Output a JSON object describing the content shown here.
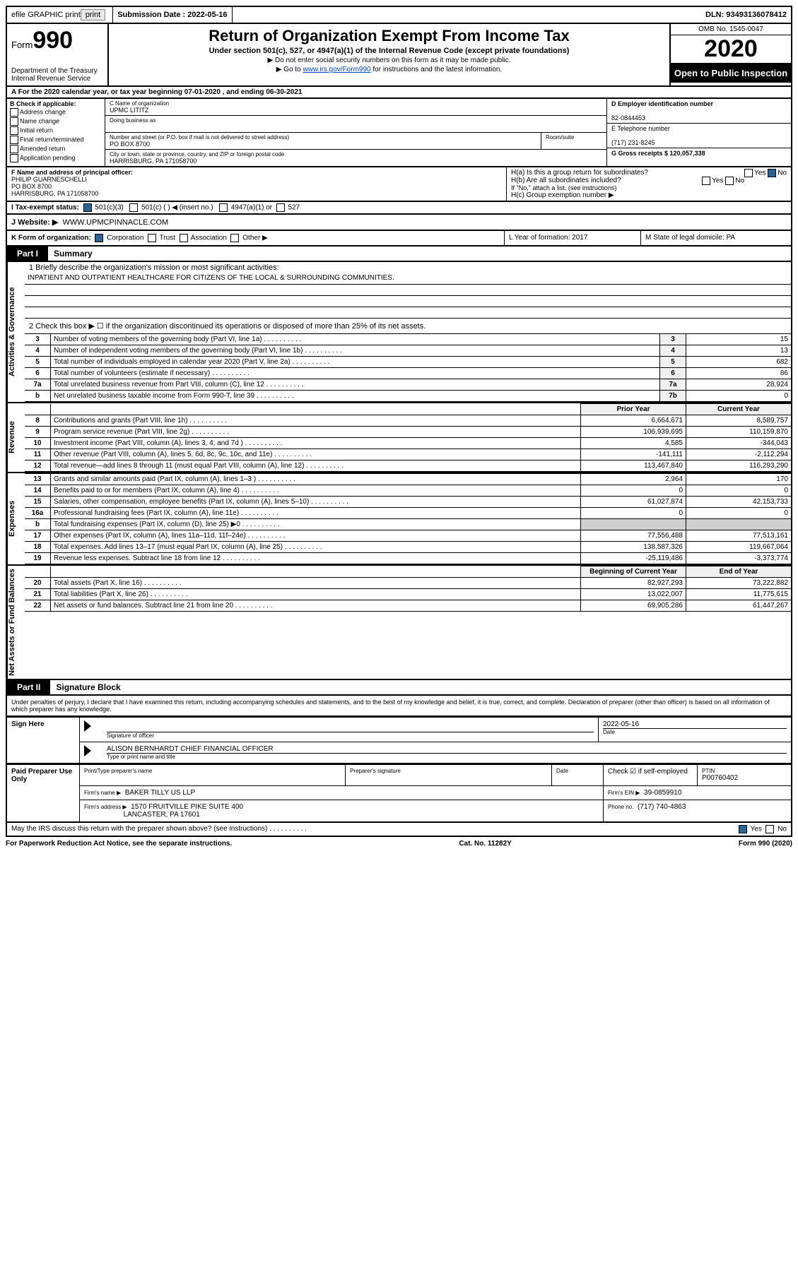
{
  "top_bar": {
    "efile_label": "efile GRAPHIC print",
    "submission_label": "Submission Date : 2022-05-16",
    "dln_label": "DLN: 93493136078412"
  },
  "header": {
    "form_label": "Form",
    "form_number": "990",
    "dept_line1": "Department of the Treasury",
    "dept_line2": "Internal Revenue Service",
    "title": "Return of Organization Exempt From Income Tax",
    "subtitle": "Under section 501(c), 527, or 4947(a)(1) of the Internal Revenue Code (except private foundations)",
    "note1": "▶ Do not enter social security numbers on this form as it may be made public.",
    "note2_pre": "▶ Go to ",
    "note2_link": "www.irs.gov/Form990",
    "note2_post": " for instructions and the latest information.",
    "omb": "OMB No. 1545-0047",
    "year": "2020",
    "open_public": "Open to Public Inspection"
  },
  "line_a": "A For the 2020 calendar year, or tax year beginning 07-01-2020    , and ending 06-30-2021",
  "section_b": {
    "label": "B Check if applicable:",
    "opts": [
      "Address change",
      "Name change",
      "Initial return",
      "Final return/terminated",
      "Amended return",
      "Application pending"
    ]
  },
  "section_c": {
    "name_label": "C Name of organization",
    "name_value": "UPMC LITITZ",
    "dba_label": "Doing business as",
    "addr_label": "Number and street (or P.O. box if mail is not delivered to street address)",
    "room_label": "Room/suite",
    "addr_value": "PO BOX 8700",
    "city_label": "City or town, state or province, country, and ZIP or foreign postal code",
    "city_value": "HARRISBURG, PA  171058700"
  },
  "section_d": {
    "ein_label": "D Employer identification number",
    "ein_value": "82-0844453",
    "tel_label": "E Telephone number",
    "tel_value": "(717) 231-8245",
    "gross_label": "G Gross receipts $ 120,057,338"
  },
  "section_f": {
    "label": "F Name and address of principal officer:",
    "line1": "PHILIP GUARNESCHELLI",
    "line2": "PO BOX 8700",
    "line3": "HARRISBURG, PA  171058700"
  },
  "section_h": {
    "ha": "H(a)  Is this a group return for subordinates?",
    "hb": "H(b)  Are all subordinates included?",
    "hb_note": "If \"No,\" attach a list. (see instructions)",
    "hc": "H(c)  Group exemption number ▶",
    "yes": "Yes",
    "no": "No"
  },
  "section_i": {
    "label": "I  Tax-exempt status:",
    "opt1": "501(c)(3)",
    "opt2": "501(c) (   ) ◀ (insert no.)",
    "opt3": "4947(a)(1) or",
    "opt4": "527"
  },
  "section_j": {
    "label": "J  Website: ▶",
    "value": "WWW.UPMCPINNACLE.COM"
  },
  "section_k": {
    "label": "K Form of organization:",
    "opts": [
      "Corporation",
      "Trust",
      "Association",
      "Other ▶"
    ],
    "l_label": "L Year of formation: 2017",
    "m_label": "M State of legal domicile: PA"
  },
  "part1": {
    "tab": "Part I",
    "title": "Summary",
    "mission_label": "1   Briefly describe the organization's mission or most significant activities:",
    "mission": "INPATIENT AND OUTPATIENT HEALTHCARE FOR CITIZENS OF THE LOCAL & SURROUNDING COMMUNITIES.",
    "line2": "2   Check this box ▶ ☐  if the organization discontinued its operations or disposed of more than 25% of its net assets.",
    "side_gov": "Activities & Governance",
    "side_rev": "Revenue",
    "side_exp": "Expenses",
    "side_net": "Net Assets or Fund Balances",
    "rows_gov": [
      {
        "n": "3",
        "l": "Number of voting members of the governing body (Part VI, line 1a)",
        "b": "3",
        "v": "15"
      },
      {
        "n": "4",
        "l": "Number of independent voting members of the governing body (Part VI, line 1b)",
        "b": "4",
        "v": "13"
      },
      {
        "n": "5",
        "l": "Total number of individuals employed in calendar year 2020 (Part V, line 2a)",
        "b": "5",
        "v": "682"
      },
      {
        "n": "6",
        "l": "Total number of volunteers (estimate if necessary)",
        "b": "6",
        "v": "86"
      },
      {
        "n": "7a",
        "l": "Total unrelated business revenue from Part VIII, column (C), line 12",
        "b": "7a",
        "v": "28,924"
      },
      {
        "n": "b",
        "l": "Net unrelated business taxable income from Form 990-T, line 39",
        "b": "7b",
        "v": "0"
      }
    ],
    "prior_hdr": "Prior Year",
    "current_hdr": "Current Year",
    "rows_rev": [
      {
        "n": "8",
        "l": "Contributions and grants (Part VIII, line 1h)",
        "p": "6,664,671",
        "c": "8,589,757"
      },
      {
        "n": "9",
        "l": "Program service revenue (Part VIII, line 2g)",
        "p": "106,939,695",
        "c": "110,159,870"
      },
      {
        "n": "10",
        "l": "Investment income (Part VIII, column (A), lines 3, 4, and 7d )",
        "p": "4,585",
        "c": "-344,043"
      },
      {
        "n": "11",
        "l": "Other revenue (Part VIII, column (A), lines 5, 6d, 8c, 9c, 10c, and 11e)",
        "p": "-141,111",
        "c": "-2,112,294"
      },
      {
        "n": "12",
        "l": "Total revenue—add lines 8 through 11 (must equal Part VIII, column (A), line 12)",
        "p": "113,467,840",
        "c": "116,293,290"
      }
    ],
    "rows_exp": [
      {
        "n": "13",
        "l": "Grants and similar amounts paid (Part IX, column (A), lines 1–3 )",
        "p": "2,964",
        "c": "170"
      },
      {
        "n": "14",
        "l": "Benefits paid to or for members (Part IX, column (A), line 4)",
        "p": "0",
        "c": "0"
      },
      {
        "n": "15",
        "l": "Salaries, other compensation, employee benefits (Part IX, column (A), lines 5–10)",
        "p": "61,027,874",
        "c": "42,153,733"
      },
      {
        "n": "16a",
        "l": "Professional fundraising fees (Part IX, column (A), line 11e)",
        "p": "0",
        "c": "0"
      },
      {
        "n": "b",
        "l": "Total fundraising expenses (Part IX, column (D), line 25) ▶0",
        "p": "shaded",
        "c": "shaded"
      },
      {
        "n": "17",
        "l": "Other expenses (Part IX, column (A), lines 11a–11d, 11f–24e)",
        "p": "77,556,488",
        "c": "77,513,161"
      },
      {
        "n": "18",
        "l": "Total expenses. Add lines 13–17 (must equal Part IX, column (A), line 25)",
        "p": "138,587,326",
        "c": "119,667,064"
      },
      {
        "n": "19",
        "l": "Revenue less expenses. Subtract line 18 from line 12",
        "p": "-25,119,486",
        "c": "-3,373,774"
      }
    ],
    "begin_hdr": "Beginning of Current Year",
    "end_hdr": "End of Year",
    "rows_net": [
      {
        "n": "20",
        "l": "Total assets (Part X, line 16)",
        "p": "82,927,293",
        "c": "73,222,882"
      },
      {
        "n": "21",
        "l": "Total liabilities (Part X, line 26)",
        "p": "13,022,007",
        "c": "11,775,615"
      },
      {
        "n": "22",
        "l": "Net assets or fund balances. Subtract line 21 from line 20",
        "p": "69,905,286",
        "c": "61,447,267"
      }
    ]
  },
  "part2": {
    "tab": "Part II",
    "title": "Signature Block",
    "declaration": "Under penalties of perjury, I declare that I have examined this return, including accompanying schedules and statements, and to the best of my knowledge and belief, it is true, correct, and complete. Declaration of preparer (other than officer) is based on all information of which preparer has any knowledge.",
    "sign_here": "Sign Here",
    "sig_officer": "Signature of officer",
    "date_label": "Date",
    "date_value": "2022-05-16",
    "officer_name": "ALISON BERNHARDT CHIEF FINANCIAL OFFICER",
    "type_label": "Type or print name and title",
    "paid_prep": "Paid Preparer Use Only",
    "print_name_label": "Print/Type preparer's name",
    "prep_sig_label": "Preparer's signature",
    "check_if": "Check ☑ if self-employed",
    "ptin_label": "PTIN",
    "ptin_value": "P00760402",
    "firm_name_label": "Firm's name    ▶",
    "firm_name": "BAKER TILLY US LLP",
    "firm_ein_label": "Firm's EIN ▶",
    "firm_ein": "39-0859910",
    "firm_addr_label": "Firm's address ▶",
    "firm_addr1": "1570 FRUITVILLE PIKE SUITE 400",
    "firm_addr2": "LANCASTER, PA  17601",
    "phone_label": "Phone no.",
    "phone_value": "(717) 740-4863",
    "discuss": "May the IRS discuss this return with the preparer shown above? (see instructions)",
    "discuss_yes": "Yes",
    "discuss_no": "No"
  },
  "footer": {
    "left": "For Paperwork Reduction Act Notice, see the separate instructions.",
    "mid": "Cat. No. 11282Y",
    "right": "Form 990 (2020)"
  }
}
